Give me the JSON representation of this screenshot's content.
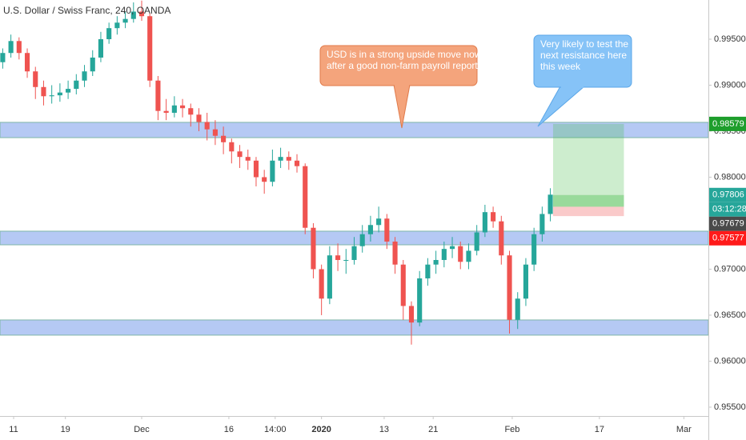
{
  "chart_data": {
    "type": "candlestick",
    "title": "U.S. Dollar / Swiss Franc, 240, OANDA",
    "x": [
      1,
      4,
      7,
      10,
      13,
      16,
      19,
      22,
      25,
      28,
      31,
      34,
      37,
      40,
      43,
      46,
      49,
      52,
      55,
      58,
      61,
      64,
      67,
      70,
      73,
      76,
      79,
      82,
      85,
      88,
      91,
      94,
      97,
      100,
      103,
      106,
      109,
      112,
      115,
      118,
      121,
      124,
      127,
      130,
      133,
      136,
      139,
      142,
      145,
      148,
      151,
      154,
      157,
      160,
      163,
      166,
      169,
      172,
      175,
      178,
      181,
      184,
      187,
      190,
      193,
      196,
      199,
      202
    ],
    "candles": [
      [
        0.9925,
        0.994,
        0.9918,
        0.9935
      ],
      [
        0.9935,
        0.9955,
        0.993,
        0.9948
      ],
      [
        0.9948,
        0.9952,
        0.9928,
        0.9935
      ],
      [
        0.9935,
        0.994,
        0.9908,
        0.9915
      ],
      [
        0.9915,
        0.992,
        0.9885,
        0.9898
      ],
      [
        0.9898,
        0.9905,
        0.9878,
        0.9888
      ],
      [
        0.9888,
        0.99,
        0.988,
        0.9889
      ],
      [
        0.9889,
        0.9902,
        0.9882,
        0.9892
      ],
      [
        0.9892,
        0.9905,
        0.9885,
        0.9896
      ],
      [
        0.9896,
        0.9912,
        0.989,
        0.9905
      ],
      [
        0.9905,
        0.9922,
        0.9898,
        0.9915
      ],
      [
        0.9915,
        0.9938,
        0.991,
        0.993
      ],
      [
        0.993,
        0.9958,
        0.9925,
        0.995
      ],
      [
        0.995,
        0.9968,
        0.9945,
        0.9962
      ],
      [
        0.9962,
        0.9975,
        0.9955,
        0.9968
      ],
      [
        0.9968,
        0.998,
        0.9962,
        0.9972
      ],
      [
        0.9972,
        0.999,
        0.9968,
        0.998
      ],
      [
        0.998,
        0.9992,
        0.997,
        0.9975
      ],
      [
        0.9975,
        0.9978,
        0.9898,
        0.9905
      ],
      [
        0.9905,
        0.991,
        0.9862,
        0.9872
      ],
      [
        0.9872,
        0.9885,
        0.9862,
        0.987
      ],
      [
        0.987,
        0.9888,
        0.9865,
        0.9878
      ],
      [
        0.9878,
        0.9885,
        0.9865,
        0.9875
      ],
      [
        0.9875,
        0.988,
        0.9855,
        0.9868
      ],
      [
        0.9868,
        0.9875,
        0.985,
        0.986
      ],
      [
        0.986,
        0.987,
        0.984,
        0.9852
      ],
      [
        0.9852,
        0.9862,
        0.9835,
        0.9845
      ],
      [
        0.9845,
        0.9855,
        0.9825,
        0.9838
      ],
      [
        0.9838,
        0.9842,
        0.9815,
        0.9828
      ],
      [
        0.9828,
        0.9835,
        0.981,
        0.9822
      ],
      [
        0.9822,
        0.983,
        0.9808,
        0.9818
      ],
      [
        0.9818,
        0.9822,
        0.979,
        0.98
      ],
      [
        0.98,
        0.9808,
        0.9782,
        0.9795
      ],
      [
        0.9795,
        0.983,
        0.979,
        0.9818
      ],
      [
        0.9818,
        0.9832,
        0.981,
        0.9822
      ],
      [
        0.9822,
        0.9828,
        0.9808,
        0.9818
      ],
      [
        0.9818,
        0.9825,
        0.9805,
        0.9812
      ],
      [
        0.9812,
        0.9815,
        0.9738,
        0.9745
      ],
      [
        0.9745,
        0.975,
        0.969,
        0.97
      ],
      [
        0.97,
        0.9705,
        0.965,
        0.9668
      ],
      [
        0.9668,
        0.9725,
        0.9662,
        0.9715
      ],
      [
        0.9715,
        0.9728,
        0.9698,
        0.971
      ],
      [
        0.971,
        0.9722,
        0.9695,
        0.971
      ],
      [
        0.971,
        0.9735,
        0.9705,
        0.9725
      ],
      [
        0.9725,
        0.9748,
        0.9718,
        0.9738
      ],
      [
        0.9738,
        0.9758,
        0.973,
        0.9748
      ],
      [
        0.9748,
        0.9768,
        0.974,
        0.9755
      ],
      [
        0.9755,
        0.976,
        0.9722,
        0.973
      ],
      [
        0.973,
        0.9735,
        0.9695,
        0.9705
      ],
      [
        0.9705,
        0.971,
        0.9645,
        0.966
      ],
      [
        0.966,
        0.9665,
        0.9618,
        0.9642
      ],
      [
        0.9642,
        0.9698,
        0.9638,
        0.969
      ],
      [
        0.969,
        0.9712,
        0.9682,
        0.9705
      ],
      [
        0.9705,
        0.972,
        0.9695,
        0.971
      ],
      [
        0.971,
        0.973,
        0.9702,
        0.9722
      ],
      [
        0.9722,
        0.9735,
        0.9712,
        0.9725
      ],
      [
        0.9725,
        0.973,
        0.97,
        0.9708
      ],
      [
        0.9708,
        0.9728,
        0.97,
        0.972
      ],
      [
        0.972,
        0.9748,
        0.9715,
        0.974
      ],
      [
        0.974,
        0.977,
        0.9735,
        0.9762
      ],
      [
        0.9762,
        0.9768,
        0.9745,
        0.9752
      ],
      [
        0.9752,
        0.9758,
        0.9705,
        0.9715
      ],
      [
        0.9715,
        0.972,
        0.963,
        0.9645
      ],
      [
        0.9645,
        0.9675,
        0.9635,
        0.9668
      ],
      [
        0.9668,
        0.9712,
        0.966,
        0.9705
      ],
      [
        0.9705,
        0.9745,
        0.9698,
        0.9738
      ],
      [
        0.9738,
        0.9768,
        0.973,
        0.976
      ],
      [
        0.976,
        0.9788,
        0.9752,
        0.9781
      ]
    ],
    "up_color": "#26a69a",
    "down_color": "#ef5350",
    "xlim": [
      0,
      260
    ],
    "xticks": [
      {
        "value": 5,
        "label": "11"
      },
      {
        "value": 24,
        "label": "19"
      },
      {
        "value": 52,
        "label": "Dec"
      },
      {
        "value": 84,
        "label": "16"
      },
      {
        "value": 101,
        "label": "14:00"
      },
      {
        "value": 118,
        "label": "2020"
      },
      {
        "value": 141,
        "label": "13"
      },
      {
        "value": 159,
        "label": "21"
      },
      {
        "value": 188,
        "label": "Feb"
      },
      {
        "value": 220,
        "label": "17"
      },
      {
        "value": 251,
        "label": "Mar"
      }
    ],
    "ylim": [
      0.95404,
      0.99926
    ],
    "yticks": [
      {
        "value": 0.995,
        "label": "0.99500"
      },
      {
        "value": 0.99,
        "label": "0.99000"
      },
      {
        "value": 0.985,
        "label": "0.98500"
      },
      {
        "value": 0.98,
        "label": "0.98000"
      },
      {
        "value": 0.975,
        "label": "0.97500"
      },
      {
        "value": 0.97,
        "label": "0.97000"
      },
      {
        "value": 0.965,
        "label": "0.96500"
      },
      {
        "value": 0.96,
        "label": "0.96000"
      },
      {
        "value": 0.955,
        "label": "0.95500"
      }
    ],
    "zones": [
      [
        0.9843,
        0.98596
      ],
      [
        0.97265,
        0.97413
      ],
      [
        0.96283,
        0.96448
      ]
    ],
    "position": {
      "x": [
        203,
        229
      ],
      "entry": 0.97679,
      "target": 0.98579,
      "stop": 0.97577
    },
    "last_price": 0.97806,
    "countdown": "03:12:28",
    "annotations": [
      {
        "lines": [
          "USD is in a strong upside move now",
          "after a good non-farm payroll report"
        ]
      },
      {
        "lines": [
          "Very likely to test the",
          "next resistance here",
          "this week"
        ]
      }
    ]
  }
}
